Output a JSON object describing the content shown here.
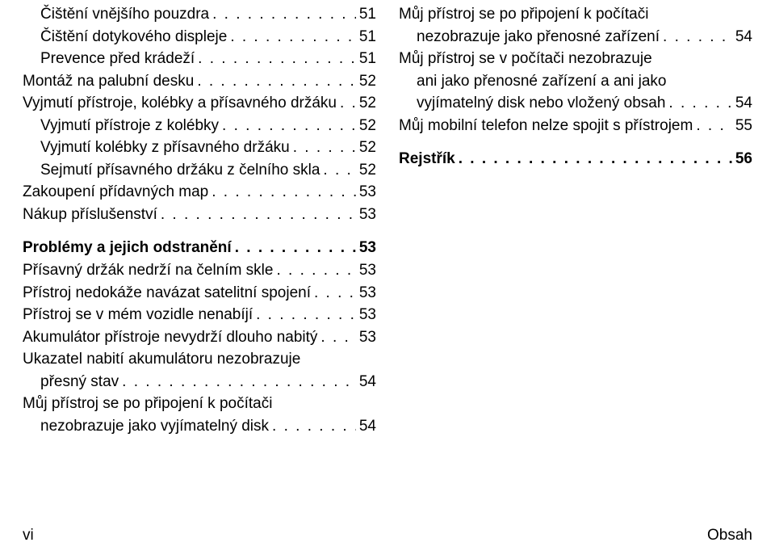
{
  "dotFill": ". . . . . . . . . . . . . . . . . . . . . . . . . . . . . . . . . . . . . . . . . . . . . . . . . . . . . . . . . . . . . . . . . . . . . . . . . . . . . . . . . . . . . . . . . . . . . . . . . . . . . . . . . . . . . . . . . . . . . . . . . . . . . . . . . . . . . . . . . . . . . . . . . . . . . . . . . . . . . . . . . . . . . . . .",
  "left": [
    {
      "label": "Čištění vnějšího pouzdra",
      "page": "51",
      "indent": 1,
      "bold": false
    },
    {
      "label": "Čištění dotykového displeje",
      "page": "51",
      "indent": 1,
      "bold": false
    },
    {
      "label": "Prevence před krádeží",
      "page": "51",
      "indent": 1,
      "bold": false
    },
    {
      "label": "Montáž na palubní desku",
      "page": "52",
      "indent": 0,
      "bold": false
    },
    {
      "label": "Vyjmutí přístroje, kolébky a přísavného držáku",
      "page": "52",
      "indent": 0,
      "bold": false
    },
    {
      "label": "Vyjmutí přístroje z kolébky",
      "page": "52",
      "indent": 1,
      "bold": false
    },
    {
      "label": "Vyjmutí kolébky z přísavného držáku",
      "page": "52",
      "indent": 1,
      "bold": false
    },
    {
      "label": "Sejmutí přísavného držáku z čelního skla",
      "page": "52",
      "indent": 1,
      "bold": false
    },
    {
      "label": "Zakoupení přídavných map",
      "page": "53",
      "indent": 0,
      "bold": false
    },
    {
      "label": "Nákup příslušenství",
      "page": "53",
      "indent": 0,
      "bold": false
    }
  ],
  "leftSection2": [
    {
      "label": "Problémy a jejich odstranění",
      "page": "53",
      "indent": 0,
      "bold": true
    },
    {
      "label": "Přísavný držák nedrží na čelním skle",
      "page": "53",
      "indent": 0,
      "bold": false
    },
    {
      "label": "Přístroj nedokáže navázat satelitní spojení",
      "page": "53",
      "indent": 0,
      "bold": false
    },
    {
      "label": "Přístroj se v mém vozidle nenabíjí",
      "page": "53",
      "indent": 0,
      "bold": false
    },
    {
      "label": "Akumulátor přístroje nevydrží dlouho nabitý",
      "page": "53",
      "indent": 0,
      "bold": false
    },
    {
      "labelLines": [
        "Ukazatel nabití akumulátoru nezobrazuje",
        "přesný stav"
      ],
      "page": "54",
      "indent": 0,
      "bold": false,
      "multiline": true,
      "lastIndent": 1
    },
    {
      "labelLines": [
        "Můj přístroj se po připojení k počítači",
        "nezobrazuje jako vyjímatelný disk"
      ],
      "page": "54",
      "indent": 0,
      "bold": false,
      "multiline": true,
      "lastIndent": 1
    }
  ],
  "right": [
    {
      "labelLines": [
        "Můj přístroj se po připojení k počítači",
        "nezobrazuje jako přenosné zařízení"
      ],
      "page": "54",
      "indent": 0,
      "bold": false,
      "multiline": true,
      "lastIndent": 1
    },
    {
      "labelLines": [
        "Můj přístroj se v počítači nezobrazuje",
        "ani jako přenosné zařízení a ani jako",
        "vyjímatelný disk nebo vložený obsah"
      ],
      "page": "54",
      "indent": 0,
      "bold": false,
      "multiline": true,
      "lastIndent": 1
    },
    {
      "label": "Můj mobilní telefon nelze spojit s přístrojem",
      "page": "55",
      "indent": 0,
      "bold": false
    }
  ],
  "rightSection2": [
    {
      "label": "Rejstřík",
      "page": "56",
      "indent": 0,
      "bold": true
    }
  ],
  "footer": {
    "left": "vi",
    "right": "Obsah"
  }
}
